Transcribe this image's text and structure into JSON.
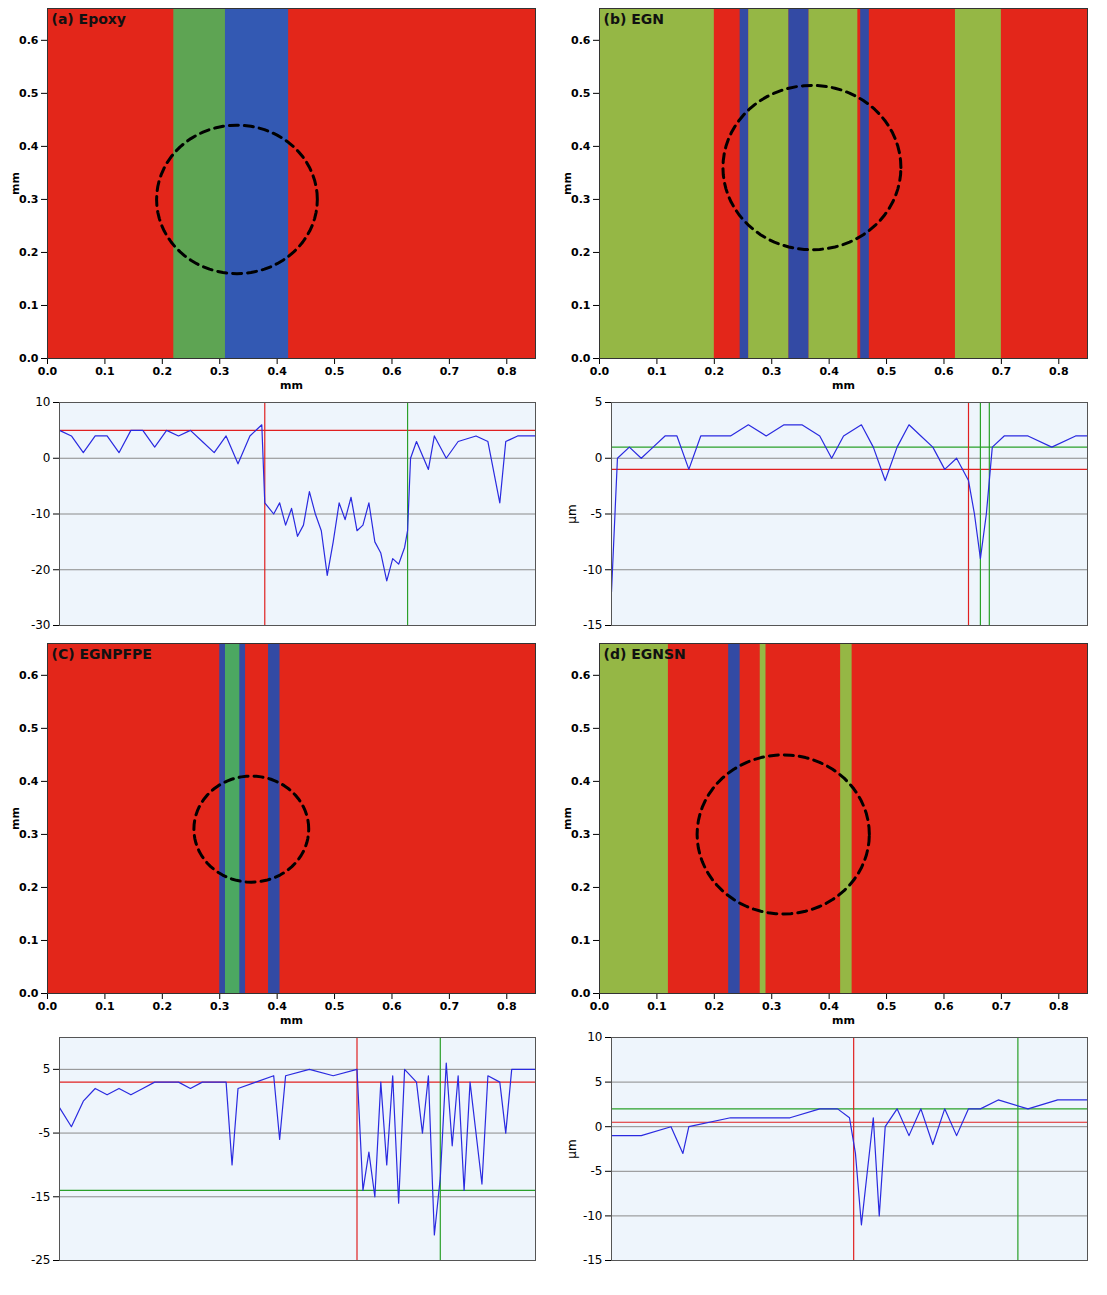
{
  "chart_data": [
    {
      "type": "surface",
      "title": "(a) Epoxy",
      "x_label": "mm",
      "y_label": "mm",
      "color": "#e3261a",
      "xlim": [
        0,
        0.85
      ],
      "ylim": [
        0,
        0.66
      ],
      "xticks": [
        {
          "value": 0,
          "label": "0.0"
        },
        {
          "value": 0.1,
          "label": "0.1"
        },
        {
          "value": 0.2,
          "label": "0.2"
        },
        {
          "value": 0.3,
          "label": "0.3"
        },
        {
          "value": 0.4,
          "label": "0.4"
        },
        {
          "value": 0.5,
          "label": "0.5"
        },
        {
          "value": 0.6,
          "label": "0.6"
        },
        {
          "value": 0.7,
          "label": "0.7"
        },
        {
          "value": 0.8,
          "label": "0.8"
        }
      ],
      "yticks": [
        {
          "value": 0,
          "label": "0.0"
        },
        {
          "value": 0.1,
          "label": "0.1"
        },
        {
          "value": 0.2,
          "label": "0.2"
        },
        {
          "value": 0.3,
          "label": "0.3"
        },
        {
          "value": 0.4,
          "label": "0.4"
        },
        {
          "value": 0.5,
          "label": "0.5"
        },
        {
          "value": 0.6,
          "label": "0.6"
        }
      ],
      "bands": [
        {
          "x0": 0.22,
          "x1": 0.31,
          "color": "#4fb35a"
        },
        {
          "x0": 0.31,
          "x1": 0.42,
          "color": "#1f5fc4"
        }
      ],
      "highlight": {
        "x": 0.33,
        "y": 0.3,
        "r": 0.14
      }
    },
    {
      "type": "line",
      "xlim": [
        0,
        0.8
      ],
      "ylim": [
        -30,
        10
      ],
      "yticks": [
        10,
        0,
        -10,
        -20,
        -30
      ],
      "tick_labels": "y",
      "grid": true,
      "color": "#2a2ae0",
      "x": [
        0,
        0.02,
        0.04,
        0.06,
        0.08,
        0.1,
        0.12,
        0.14,
        0.16,
        0.18,
        0.2,
        0.22,
        0.24,
        0.26,
        0.28,
        0.3,
        0.32,
        0.34,
        0.345,
        0.36,
        0.37,
        0.38,
        0.39,
        0.4,
        0.41,
        0.42,
        0.43,
        0.44,
        0.45,
        0.46,
        0.47,
        0.48,
        0.49,
        0.5,
        0.51,
        0.52,
        0.53,
        0.54,
        0.55,
        0.56,
        0.57,
        0.58,
        0.585,
        0.59,
        0.6,
        0.62,
        0.63,
        0.65,
        0.67,
        0.7,
        0.72,
        0.74,
        0.75,
        0.77,
        0.8
      ],
      "values": [
        5,
        4,
        1,
        4,
        4,
        1,
        5,
        5,
        2,
        5,
        4,
        5,
        3,
        1,
        4,
        -1,
        4,
        6,
        -8,
        -10,
        -8,
        -12,
        -9,
        -14,
        -12,
        -6,
        -10,
        -13,
        -21,
        -15,
        -8,
        -11,
        -7,
        -13,
        -12,
        -8,
        -15,
        -17,
        -22,
        -18,
        -19,
        -16,
        -13,
        0,
        3,
        -2,
        4,
        0,
        3,
        4,
        3,
        -8,
        3,
        4,
        4
      ],
      "hlines": [
        {
          "value": 5,
          "color": "#e02020"
        }
      ],
      "vlines": [
        {
          "value": 0.345,
          "color": "#e02020"
        },
        {
          "value": 0.585,
          "color": "#2aa02a"
        }
      ]
    },
    {
      "type": "surface",
      "title": "(b) EGN",
      "x_label": "mm",
      "y_label": "mm",
      "color": "#e3261a",
      "xlim": [
        0,
        0.85
      ],
      "ylim": [
        0,
        0.66
      ],
      "xticks": [
        {
          "value": 0,
          "label": "0.0"
        },
        {
          "value": 0.1,
          "label": "0.1"
        },
        {
          "value": 0.2,
          "label": "0.2"
        },
        {
          "value": 0.3,
          "label": "0.3"
        },
        {
          "value": 0.4,
          "label": "0.4"
        },
        {
          "value": 0.5,
          "label": "0.5"
        },
        {
          "value": 0.6,
          "label": "0.6"
        },
        {
          "value": 0.7,
          "label": "0.7"
        },
        {
          "value": 0.8,
          "label": "0.8"
        }
      ],
      "yticks": [
        {
          "value": 0,
          "label": "0.0"
        },
        {
          "value": 0.1,
          "label": "0.1"
        },
        {
          "value": 0.2,
          "label": "0.2"
        },
        {
          "value": 0.3,
          "label": "0.3"
        },
        {
          "value": 0.4,
          "label": "0.4"
        },
        {
          "value": 0.5,
          "label": "0.5"
        },
        {
          "value": 0.6,
          "label": "0.6"
        }
      ],
      "bands": [
        {
          "x0": 0.0,
          "x1": 0.2,
          "color": "#8cc84a"
        },
        {
          "x0": 0.245,
          "x1": 0.26,
          "color": "#1f4fb4"
        },
        {
          "x0": 0.26,
          "x1": 0.33,
          "color": "#8cc84a"
        },
        {
          "x0": 0.33,
          "x1": 0.365,
          "color": "#1f4fb4"
        },
        {
          "x0": 0.365,
          "x1": 0.45,
          "color": "#8cc84a"
        },
        {
          "x0": 0.455,
          "x1": 0.47,
          "color": "#1f4fb4"
        },
        {
          "x0": 0.62,
          "x1": 0.7,
          "color": "#8cc84a"
        }
      ],
      "highlight": {
        "x": 0.37,
        "y": 0.36,
        "r": 0.155
      }
    },
    {
      "type": "line",
      "y_label": "µm",
      "xlim": [
        0,
        0.8
      ],
      "ylim": [
        -15,
        5
      ],
      "yticks": [
        5,
        0,
        -5,
        -10,
        -15
      ],
      "tick_labels": "y",
      "grid": true,
      "color": "#2a2ae0",
      "x": [
        0,
        0.01,
        0.03,
        0.05,
        0.07,
        0.09,
        0.11,
        0.13,
        0.15,
        0.17,
        0.2,
        0.23,
        0.26,
        0.29,
        0.32,
        0.35,
        0.37,
        0.39,
        0.42,
        0.44,
        0.46,
        0.48,
        0.5,
        0.52,
        0.54,
        0.56,
        0.58,
        0.6,
        0.61,
        0.62,
        0.63,
        0.64,
        0.66,
        0.7,
        0.74,
        0.78,
        0.8
      ],
      "values": [
        -12,
        0,
        1,
        0,
        1,
        2,
        2,
        -1,
        2,
        2,
        2,
        3,
        2,
        3,
        3,
        2,
        0,
        2,
        3,
        1,
        -2,
        1,
        3,
        2,
        1,
        -1,
        0,
        -2,
        -5,
        -9,
        -5,
        1,
        2,
        2,
        1,
        2,
        2
      ],
      "hlines": [
        {
          "value": -1,
          "color": "#e02020"
        },
        {
          "value": 1,
          "color": "#2aa02a"
        }
      ],
      "vlines": [
        {
          "value": 0.6,
          "color": "#e02020"
        },
        {
          "value": 0.62,
          "color": "#2aa02a"
        },
        {
          "value": 0.635,
          "color": "#2aa02a"
        }
      ]
    },
    {
      "type": "surface",
      "title": "(C) EGNPFPE",
      "x_label": "mm",
      "y_label": "mm",
      "color": "#e3261a",
      "xlim": [
        0,
        0.85
      ],
      "ylim": [
        0,
        0.66
      ],
      "xticks": [
        {
          "value": 0,
          "label": "0.0"
        },
        {
          "value": 0.1,
          "label": "0.1"
        },
        {
          "value": 0.2,
          "label": "0.2"
        },
        {
          "value": 0.3,
          "label": "0.3"
        },
        {
          "value": 0.4,
          "label": "0.4"
        },
        {
          "value": 0.5,
          "label": "0.5"
        },
        {
          "value": 0.6,
          "label": "0.6"
        },
        {
          "value": 0.7,
          "label": "0.7"
        },
        {
          "value": 0.8,
          "label": "0.8"
        }
      ],
      "yticks": [
        {
          "value": 0,
          "label": "0.0"
        },
        {
          "value": 0.1,
          "label": "0.1"
        },
        {
          "value": 0.2,
          "label": "0.2"
        },
        {
          "value": 0.3,
          "label": "0.3"
        },
        {
          "value": 0.4,
          "label": "0.4"
        },
        {
          "value": 0.5,
          "label": "0.5"
        },
        {
          "value": 0.6,
          "label": "0.6"
        }
      ],
      "bands": [
        {
          "x0": 0.3,
          "x1": 0.345,
          "color": "#1f4fb4"
        },
        {
          "x0": 0.31,
          "x1": 0.335,
          "color": "#4fb35a"
        },
        {
          "x0": 0.385,
          "x1": 0.405,
          "color": "#1f4fb4"
        }
      ],
      "highlight": {
        "x": 0.355,
        "y": 0.31,
        "r": 0.1
      }
    },
    {
      "type": "line",
      "xlim": [
        0,
        0.8
      ],
      "ylim": [
        -25,
        10
      ],
      "yticks": [
        5,
        -5,
        -15,
        -25
      ],
      "tick_labels": "y",
      "grid": true,
      "color": "#2a2ae0",
      "x": [
        0,
        0.02,
        0.04,
        0.06,
        0.08,
        0.1,
        0.12,
        0.14,
        0.16,
        0.18,
        0.2,
        0.22,
        0.24,
        0.28,
        0.29,
        0.3,
        0.33,
        0.36,
        0.37,
        0.38,
        0.42,
        0.46,
        0.5,
        0.51,
        0.52,
        0.53,
        0.54,
        0.55,
        0.56,
        0.57,
        0.58,
        0.6,
        0.61,
        0.62,
        0.63,
        0.64,
        0.65,
        0.66,
        0.67,
        0.68,
        0.69,
        0.71,
        0.72,
        0.74,
        0.75,
        0.76,
        0.8
      ],
      "values": [
        -1,
        -4,
        0,
        2,
        1,
        2,
        1,
        2,
        3,
        3,
        3,
        2,
        3,
        3,
        -10,
        2,
        3,
        4,
        -6,
        4,
        5,
        4,
        5,
        -14,
        -8,
        -15,
        3,
        -10,
        4,
        -16,
        5,
        3,
        -5,
        4,
        -21,
        -12,
        6,
        -7,
        4,
        -14,
        3,
        -13,
        4,
        3,
        -5,
        5,
        5
      ],
      "hlines": [
        {
          "value": 3,
          "color": "#e02020"
        },
        {
          "value": -14,
          "color": "#2aa02a"
        }
      ],
      "vlines": [
        {
          "value": 0.5,
          "color": "#e02020"
        },
        {
          "value": 0.64,
          "color": "#2aa02a"
        }
      ]
    },
    {
      "type": "surface",
      "title": "(d) EGNSN",
      "x_label": "mm",
      "y_label": "mm",
      "color": "#e3261a",
      "xlim": [
        0,
        0.85
      ],
      "ylim": [
        0,
        0.66
      ],
      "xticks": [
        {
          "value": 0,
          "label": "0.0"
        },
        {
          "value": 0.1,
          "label": "0.1"
        },
        {
          "value": 0.2,
          "label": "0.2"
        },
        {
          "value": 0.3,
          "label": "0.3"
        },
        {
          "value": 0.4,
          "label": "0.4"
        },
        {
          "value": 0.5,
          "label": "0.5"
        },
        {
          "value": 0.6,
          "label": "0.6"
        },
        {
          "value": 0.7,
          "label": "0.7"
        },
        {
          "value": 0.8,
          "label": "0.8"
        }
      ],
      "yticks": [
        {
          "value": 0,
          "label": "0.0"
        },
        {
          "value": 0.1,
          "label": "0.1"
        },
        {
          "value": 0.2,
          "label": "0.2"
        },
        {
          "value": 0.3,
          "label": "0.3"
        },
        {
          "value": 0.4,
          "label": "0.4"
        },
        {
          "value": 0.5,
          "label": "0.5"
        },
        {
          "value": 0.6,
          "label": "0.6"
        }
      ],
      "bands": [
        {
          "x0": 0.0,
          "x1": 0.12,
          "color": "#8cc84a"
        },
        {
          "x0": 0.225,
          "x1": 0.245,
          "color": "#1f4fb4"
        },
        {
          "x0": 0.28,
          "x1": 0.29,
          "color": "#8cc84a"
        },
        {
          "x0": 0.42,
          "x1": 0.44,
          "color": "#8cc84a"
        }
      ],
      "highlight": {
        "x": 0.32,
        "y": 0.3,
        "r": 0.15
      }
    },
    {
      "type": "line",
      "y_label": "µm",
      "xlim": [
        0,
        0.8
      ],
      "ylim": [
        -15,
        10
      ],
      "yticks": [
        10,
        5,
        0,
        -5,
        -10,
        -15
      ],
      "tick_labels": "y",
      "grid": true,
      "color": "#2a2ae0",
      "x": [
        0,
        0.05,
        0.1,
        0.12,
        0.13,
        0.2,
        0.3,
        0.35,
        0.38,
        0.4,
        0.41,
        0.42,
        0.43,
        0.44,
        0.45,
        0.46,
        0.48,
        0.5,
        0.52,
        0.54,
        0.56,
        0.58,
        0.6,
        0.62,
        0.65,
        0.7,
        0.75,
        0.8
      ],
      "values": [
        -1,
        -1,
        0,
        -3,
        0,
        1,
        1,
        2,
        2,
        1,
        -3,
        -11,
        -5,
        1,
        -10,
        0,
        2,
        -1,
        2,
        -2,
        2,
        -1,
        2,
        2,
        3,
        2,
        3,
        3
      ],
      "hlines": [
        {
          "value": 0.5,
          "color": "#e02020"
        },
        {
          "value": 2,
          "color": "#2aa02a"
        }
      ],
      "vlines": [
        {
          "value": 0.407,
          "color": "#e02020"
        },
        {
          "value": 0.683,
          "color": "#2aa02a"
        }
      ]
    }
  ]
}
